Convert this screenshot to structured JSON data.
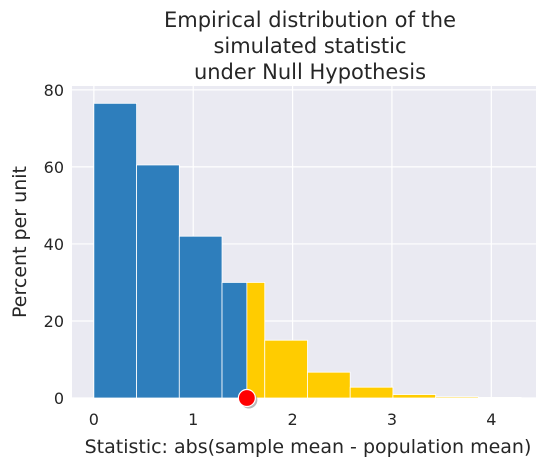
{
  "chart_data": {
    "type": "bar",
    "title_lines": [
      "Empirical distribution of the",
      "simulated statistic",
      "under Null Hypothesis"
    ],
    "xlabel": "Statistic: abs(sample mean - population mean)",
    "ylabel": "Percent per unit",
    "xlim": [
      -0.22,
      4.45
    ],
    "ylim": [
      0,
      81
    ],
    "x_ticks": [
      0,
      1,
      2,
      3,
      4
    ],
    "y_ticks": [
      0,
      20,
      40,
      60,
      80
    ],
    "grid": true,
    "background_color": "#eaeaf2",
    "bins": [
      {
        "start": 0.0,
        "end": 0.43,
        "value": 76.5,
        "color": "#2e7ebc"
      },
      {
        "start": 0.43,
        "end": 0.86,
        "value": 60.5,
        "color": "#2e7ebc"
      },
      {
        "start": 0.86,
        "end": 1.29,
        "value": 42.0,
        "color": "#2e7ebc"
      },
      {
        "start": 1.29,
        "end": 1.54,
        "value": 30.0,
        "color": "#2e7ebc"
      },
      {
        "start": 1.54,
        "end": 1.72,
        "value": 30.0,
        "color": "#ffcc00"
      },
      {
        "start": 1.72,
        "end": 2.15,
        "value": 15.0,
        "color": "#ffcc00"
      },
      {
        "start": 2.15,
        "end": 2.58,
        "value": 6.7,
        "color": "#ffcc00"
      },
      {
        "start": 2.58,
        "end": 3.01,
        "value": 2.8,
        "color": "#ffcc00"
      },
      {
        "start": 3.01,
        "end": 3.44,
        "value": 0.9,
        "color": "#ffcc00"
      },
      {
        "start": 3.44,
        "end": 3.87,
        "value": 0.3,
        "color": "#ffcc00"
      },
      {
        "start": 3.87,
        "end": 4.3,
        "value": 0.15,
        "color": "#ffcc00"
      }
    ],
    "observed_statistic": {
      "x": 1.54,
      "color": "#ff0000"
    }
  }
}
